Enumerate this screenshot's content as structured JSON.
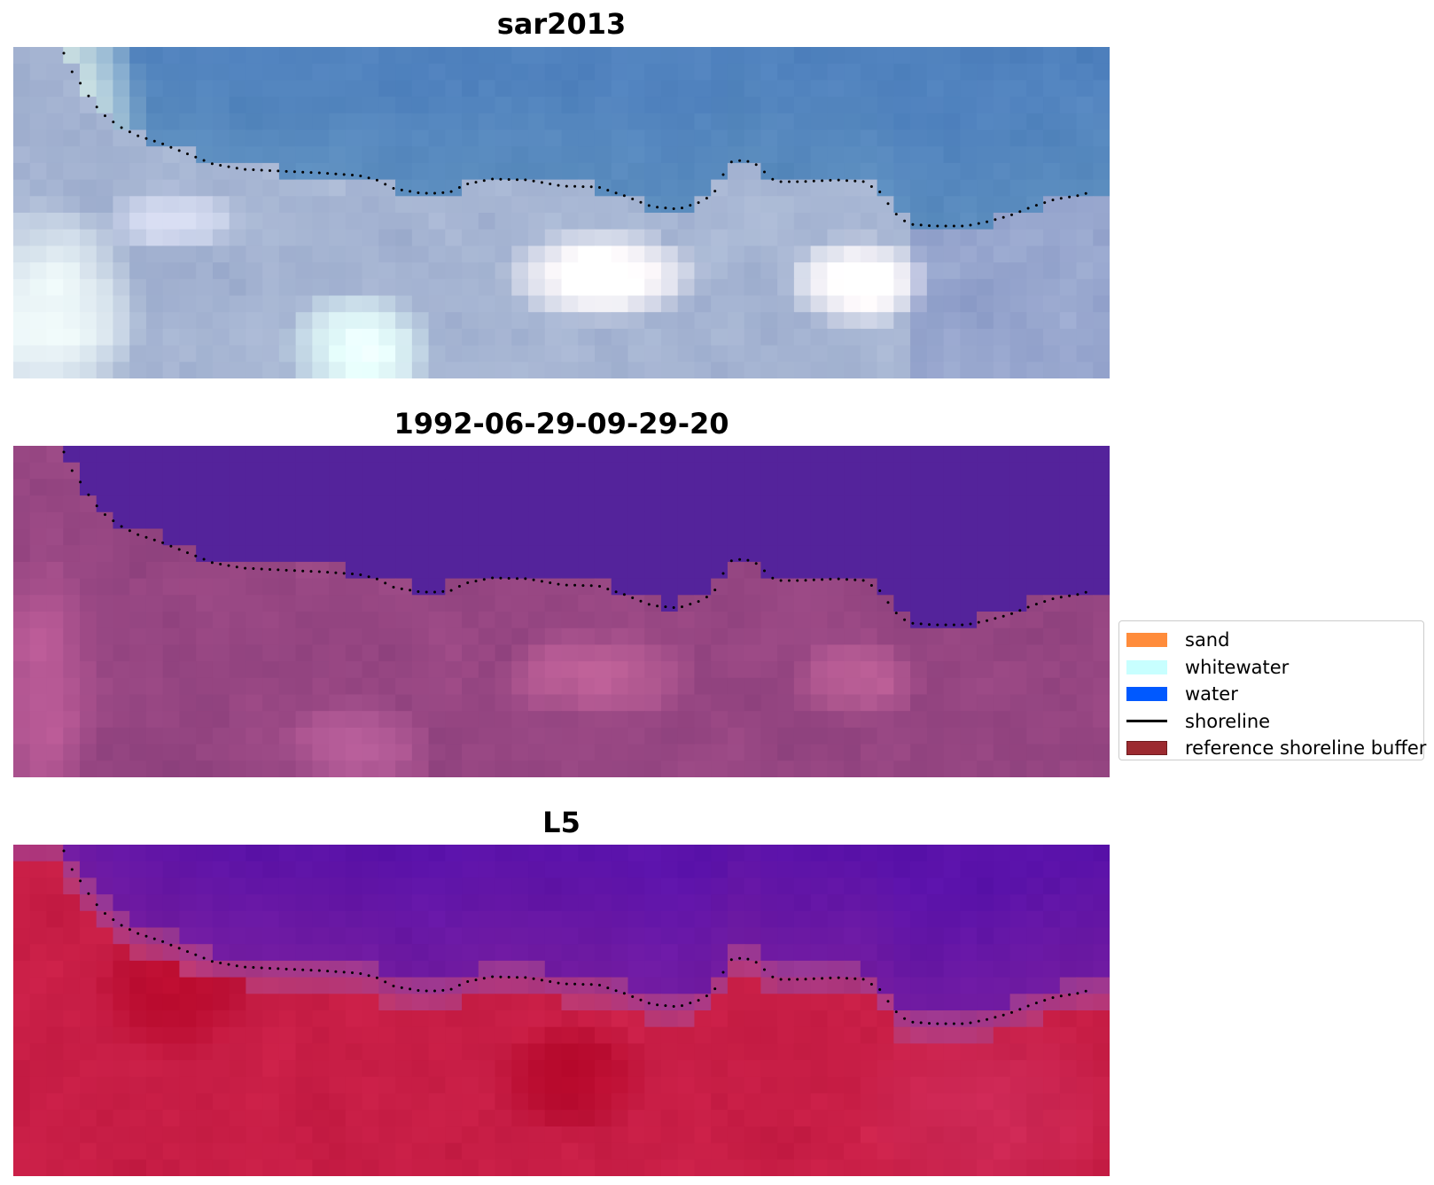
{
  "panels": [
    {
      "title": "sar2013",
      "palette": "rgb"
    },
    {
      "title": "1992-06-29-09-29-20",
      "palette": "classified"
    },
    {
      "title": "L5",
      "palette": "index"
    }
  ],
  "legend": {
    "items": [
      {
        "label": "sand",
        "color": "#ff8c3b",
        "kind": "patch"
      },
      {
        "label": "whitewater",
        "color": "#c8ffff",
        "kind": "patch"
      },
      {
        "label": "water",
        "color": "#0059ff",
        "kind": "patch"
      },
      {
        "label": "shoreline",
        "color": "#000000",
        "kind": "line"
      },
      {
        "label": "reference shoreline buffer",
        "color": "#9c2a30",
        "kind": "patch"
      }
    ]
  }
}
